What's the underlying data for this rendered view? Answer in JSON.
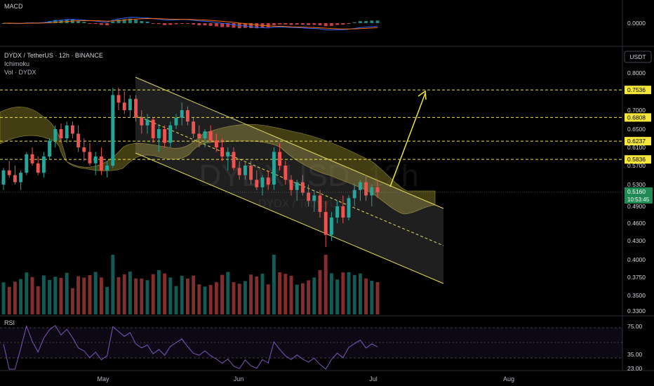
{
  "header": {
    "symbol_line": "DYDX / TetherUS · 12h · BINANCE",
    "indicator_1": "Ichimoku",
    "indicator_2": "Vol · DYDX",
    "currency_button": "USDT",
    "watermark_big": "DYDXUSD, 12h",
    "watermark_small": "DYDX / TetherUS"
  },
  "macd_panel": {
    "label": "MACD",
    "value_label": "0.0000"
  },
  "rsi_panel": {
    "label": "RSI",
    "ticks": [
      "75.00",
      "35.00",
      "23.00"
    ]
  },
  "price_axis": {
    "ticks": [
      "0.8000",
      "0.7500",
      "0.7000",
      "0.6500",
      "0.6100",
      "0.5700",
      "0.5300",
      "0.4900",
      "0.4600",
      "0.4300",
      "0.4000",
      "0.3750",
      "0.3500",
      "0.3300"
    ],
    "levels": [
      "0.7536",
      "0.6808",
      "0.6237",
      "0.5836"
    ],
    "current_price": "0.5160",
    "countdown": "10:53:45"
  },
  "months": [
    "May",
    "Jun",
    "Jul",
    "Aug"
  ],
  "colors": {
    "up": "#26a69a",
    "down": "#ef5350",
    "level": "#f0e442",
    "level_label_bg": "#f5e63c",
    "current_bg": "#1f8a54",
    "cloud": "#6b6320",
    "channel": "#e6dc5a",
    "rsi_line": "#7e57c2",
    "macd_line": "#2962ff",
    "signal_line": "#ff6d00"
  },
  "chart_data": {
    "type": "candlestick",
    "x_axis": [
      "May",
      "Jun",
      "Jul",
      "Aug"
    ],
    "y_range": [
      0.33,
      0.8
    ],
    "horizontal_levels": [
      0.7536,
      0.6808,
      0.6237,
      0.5836
    ],
    "current_price": 0.516,
    "series": [
      {
        "values": [
          [
            0.53,
            0.565,
            0.52,
            0.56
          ],
          [
            0.56,
            0.58,
            0.545,
            0.55
          ],
          [
            0.55,
            0.57,
            0.53,
            0.535
          ],
          [
            0.535,
            0.56,
            0.52,
            0.555
          ],
          [
            0.555,
            0.6,
            0.55,
            0.595
          ],
          [
            0.595,
            0.61,
            0.57,
            0.575
          ],
          [
            0.575,
            0.59,
            0.55,
            0.555
          ],
          [
            0.555,
            0.6,
            0.545,
            0.59
          ],
          [
            0.59,
            0.63,
            0.585,
            0.625
          ],
          [
            0.625,
            0.66,
            0.61,
            0.65
          ],
          [
            0.65,
            0.665,
            0.62,
            0.63
          ],
          [
            0.63,
            0.67,
            0.62,
            0.66
          ],
          [
            0.66,
            0.67,
            0.63,
            0.64
          ],
          [
            0.64,
            0.66,
            0.6,
            0.61
          ],
          [
            0.61,
            0.63,
            0.58,
            0.6
          ],
          [
            0.6,
            0.62,
            0.57,
            0.575
          ],
          [
            0.575,
            0.6,
            0.55,
            0.59
          ],
          [
            0.59,
            0.61,
            0.55,
            0.56
          ],
          [
            0.56,
            0.58,
            0.545,
            0.57
          ],
          [
            0.57,
            0.76,
            0.565,
            0.74
          ],
          [
            0.74,
            0.76,
            0.7,
            0.72
          ],
          [
            0.72,
            0.75,
            0.69,
            0.7
          ],
          [
            0.7,
            0.74,
            0.68,
            0.73
          ],
          [
            0.73,
            0.74,
            0.67,
            0.68
          ],
          [
            0.68,
            0.7,
            0.64,
            0.66
          ],
          [
            0.66,
            0.69,
            0.64,
            0.675
          ],
          [
            0.675,
            0.68,
            0.62,
            0.63
          ],
          [
            0.63,
            0.66,
            0.6,
            0.65
          ],
          [
            0.65,
            0.66,
            0.61,
            0.62
          ],
          [
            0.62,
            0.67,
            0.61,
            0.66
          ],
          [
            0.66,
            0.69,
            0.65,
            0.68
          ],
          [
            0.68,
            0.72,
            0.66,
            0.7
          ],
          [
            0.7,
            0.71,
            0.66,
            0.67
          ],
          [
            0.67,
            0.68,
            0.63,
            0.64
          ],
          [
            0.64,
            0.66,
            0.61,
            0.63
          ],
          [
            0.63,
            0.65,
            0.61,
            0.645
          ],
          [
            0.645,
            0.66,
            0.62,
            0.625
          ],
          [
            0.625,
            0.64,
            0.6,
            0.61
          ],
          [
            0.61,
            0.63,
            0.58,
            0.59
          ],
          [
            0.59,
            0.61,
            0.56,
            0.6
          ],
          [
            0.6,
            0.61,
            0.56,
            0.565
          ],
          [
            0.565,
            0.58,
            0.54,
            0.55
          ],
          [
            0.55,
            0.58,
            0.54,
            0.57
          ],
          [
            0.57,
            0.58,
            0.53,
            0.54
          ],
          [
            0.54,
            0.56,
            0.52,
            0.525
          ],
          [
            0.525,
            0.55,
            0.51,
            0.545
          ],
          [
            0.545,
            0.56,
            0.52,
            0.53
          ],
          [
            0.53,
            0.61,
            0.52,
            0.6
          ],
          [
            0.6,
            0.62,
            0.56,
            0.57
          ],
          [
            0.57,
            0.58,
            0.53,
            0.54
          ],
          [
            0.54,
            0.55,
            0.51,
            0.52
          ],
          [
            0.52,
            0.54,
            0.5,
            0.535
          ],
          [
            0.535,
            0.55,
            0.51,
            0.515
          ],
          [
            0.515,
            0.53,
            0.49,
            0.5
          ],
          [
            0.5,
            0.52,
            0.48,
            0.51
          ],
          [
            0.51,
            0.52,
            0.47,
            0.48
          ],
          [
            0.48,
            0.5,
            0.42,
            0.44
          ],
          [
            0.44,
            0.48,
            0.43,
            0.47
          ],
          [
            0.47,
            0.5,
            0.46,
            0.49
          ],
          [
            0.49,
            0.51,
            0.46,
            0.47
          ],
          [
            0.47,
            0.51,
            0.465,
            0.505
          ],
          [
            0.505,
            0.53,
            0.49,
            0.52
          ],
          [
            0.52,
            0.54,
            0.5,
            0.535
          ],
          [
            0.535,
            0.55,
            0.5,
            0.51
          ],
          [
            0.51,
            0.53,
            0.49,
            0.525
          ],
          [
            0.525,
            0.54,
            0.505,
            0.516
          ]
        ]
      }
    ]
  }
}
